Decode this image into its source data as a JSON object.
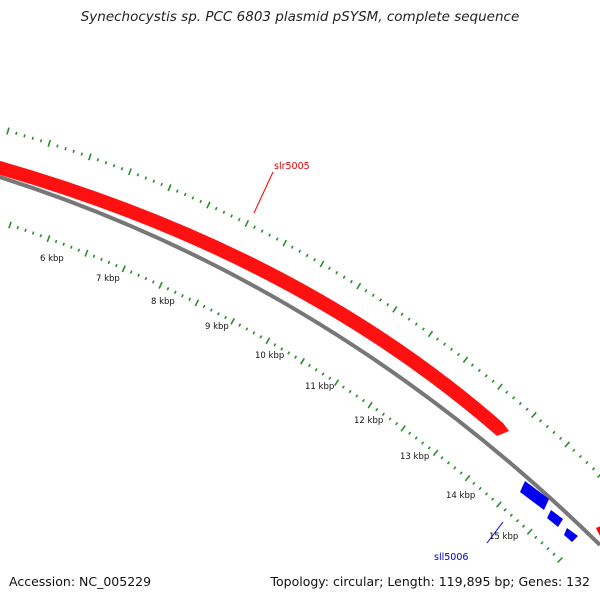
{
  "header": {
    "title": "Synechocystis sp. PCC 6803 plasmid pSYSM, complete sequence"
  },
  "footer": {
    "accession": "Accession: NC_005229",
    "summary": "Topology: circular; Length: 119,895 bp; Genes: 132"
  },
  "map": {
    "tick_labels": [
      "6 kbp",
      "7 kbp",
      "8 kbp",
      "9 kbp",
      "10 kbp",
      "11 kbp",
      "12 kbp",
      "13 kbp",
      "14 kbp",
      "15 kbp"
    ],
    "genes": [
      {
        "name": "slr5005",
        "strand": "forward",
        "color": "#ff0000"
      },
      {
        "name": "sll5006",
        "strand": "reverse",
        "color": "#0000ff"
      }
    ],
    "colors": {
      "backbone": "#777777",
      "ticks": "#2e8b2e",
      "forward_gene": "#ff0000",
      "reverse_gene": "#0000ff"
    }
  }
}
